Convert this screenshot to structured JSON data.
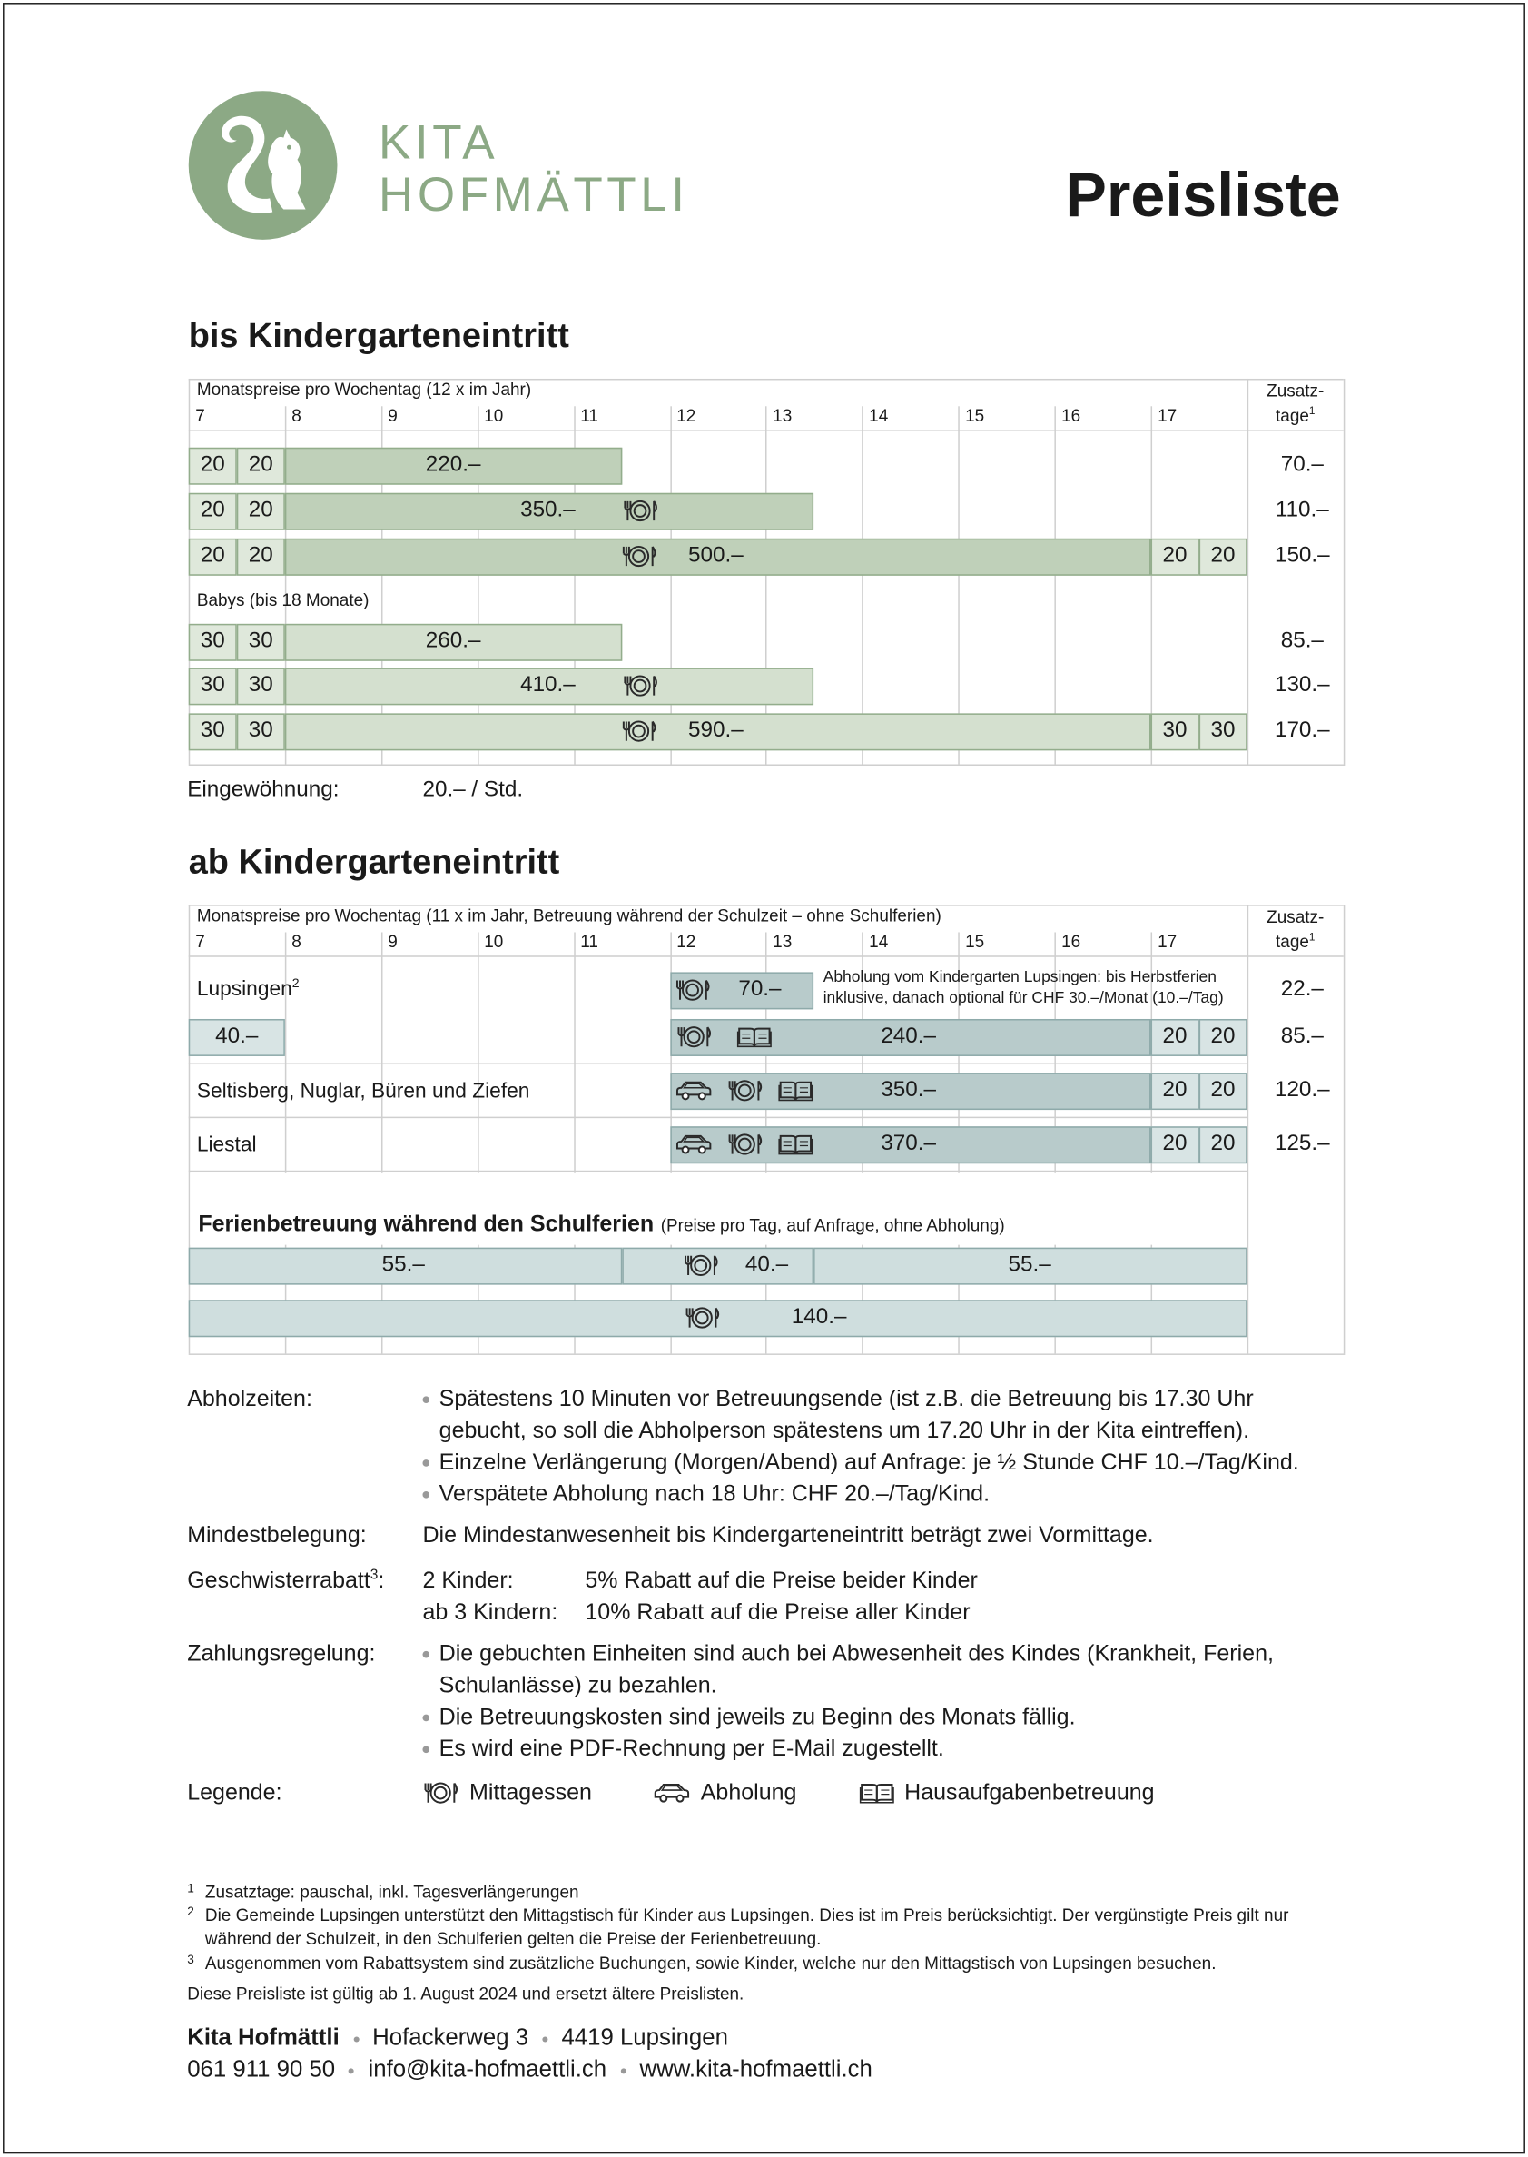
{
  "header": {
    "logo_line1": "KITA",
    "logo_line2": "HOFMÄTTLI",
    "title": "Preisliste"
  },
  "before_kindergarten": {
    "heading": "bis Kindergarteneintritt",
    "caption": "Monatspreise pro Wochentag (12 x im Jahr)",
    "hours": [
      "7",
      "8",
      "9",
      "10",
      "11",
      "12",
      "13",
      "14",
      "15",
      "16",
      "17"
    ],
    "extra_label": "Zusatz-",
    "extra_label_2": "tage",
    "extra_label_sup": "1",
    "rows": [
      {
        "cells": [
          "20",
          "20",
          "220.–"
        ],
        "extra": "70.–"
      },
      {
        "cells": [
          "20",
          "20",
          "350.–"
        ],
        "extra": "110.–"
      },
      {
        "cells": [
          "20",
          "20",
          "500.–",
          "20",
          "20"
        ],
        "extra": "150.–"
      }
    ],
    "babies_label": "Babys (bis 18 Monate)",
    "baby_rows": [
      {
        "cells": [
          "30",
          "30",
          "260.–"
        ],
        "extra": "85.–"
      },
      {
        "cells": [
          "30",
          "30",
          "410.–"
        ],
        "extra": "130.–"
      },
      {
        "cells": [
          "30",
          "30",
          "590.–",
          "30",
          "30"
        ],
        "extra": "170.–"
      }
    ],
    "settling_label": "Eingewöhnung:",
    "settling_value": "20.– / Std."
  },
  "after_kindergarten": {
    "heading": "ab Kindergarteneintritt",
    "caption": "Monatspreise pro Wochentag (11 x im Jahr, Betreuung während der Schulzeit – ohne Schulferien)",
    "hours": [
      "7",
      "8",
      "9",
      "10",
      "11",
      "12",
      "13",
      "14",
      "15",
      "16",
      "17"
    ],
    "extra_label": "Zusatz-",
    "extra_label_2": "tage",
    "extra_label_sup": "1",
    "lupsingen": {
      "name": "Lupsingen",
      "sup": "2",
      "lunch": "70.–",
      "lunch_extra": "22.–",
      "note_1": "Abholung vom Kindergarten Lupsingen: bis Herbstferien",
      "note_2": "inklusive, danach optional für CHF 30.–/Monat (10.–/Tag)",
      "cells": [
        "40.–",
        "240.–",
        "20",
        "20"
      ],
      "extra": "85.–"
    },
    "groups": [
      {
        "name": "Seltisberg, Nuglar, Büren und Ziefen",
        "cells": [
          "350.–",
          "20",
          "20"
        ],
        "extra": "120.–"
      },
      {
        "name": "Liestal",
        "cells": [
          "370.–",
          "20",
          "20"
        ],
        "extra": "125.–"
      }
    ],
    "holiday_heading": "Ferienbetreuung während den Schulferien",
    "holiday_note": "(Preise pro Tag, auf Anfrage, ohne Abholung)",
    "holiday_rows": [
      [
        "55.–",
        "40.–",
        "55.–"
      ],
      [
        "140.–"
      ]
    ]
  },
  "pickup": {
    "label": "Abholzeiten:",
    "bullets": [
      "Spätestens 10 Minuten vor Betreuungsende (ist z.B. die Betreuung bis 17.30 Uhr gebucht, so soll die Abholperson spätestens um 17.20 Uhr in der Kita eintreffen).",
      "Einzelne Verlängerung (Morgen/Abend) auf Anfrage: je ½ Stunde CHF 10.–/Tag/Kind.",
      "Verspätete Abholung nach 18 Uhr: CHF 20.–/Tag/Kind."
    ]
  },
  "minimum": {
    "label": "Mindestbelegung:",
    "text": "Die Mindestanwesenheit bis Kindergarteneintritt beträgt zwei Vormittage."
  },
  "siblings": {
    "label": "Geschwisterrabatt",
    "sup": "3",
    "label_end": ":",
    "rows": [
      {
        "count": "2 Kinder:",
        "discount": "5% Rabatt auf die Preise beider Kinder"
      },
      {
        "count": "ab 3 Kindern:",
        "discount": "10% Rabatt auf die Preise aller Kinder"
      }
    ]
  },
  "payment": {
    "label": "Zahlungsregelung:",
    "bullets": [
      "Die gebuchten Einheiten sind auch bei Abwesenheit des Kindes (Krankheit, Ferien, Schulanlässe) zu bezahlen.",
      "Die Betreuungskosten sind jeweils zu Beginn des Monats fällig.",
      "Es wird eine PDF-Rechnung per E-Mail zugestellt."
    ]
  },
  "legend": {
    "label": "Legende:",
    "lunch": "Mittagessen",
    "pickup": "Abholung",
    "homework": "Hausaufgabenbetreuung"
  },
  "footnotes": [
    {
      "mark": "1",
      "text": "Zusatztage: pauschal, inkl. Tagesverlängerungen"
    },
    {
      "mark": "2",
      "text": "Die Gemeinde Lupsingen unterstützt den Mittagstisch für Kinder aus Lupsingen. Dies ist im Preis berücksichtigt. Der vergünstigte Preis gilt nur während der Schulzeit, in den Schulferien gelten die Preise der Ferienbetreuung."
    },
    {
      "mark": "3",
      "text": "Ausgenommen vom Rabattsystem sind zusätzliche Buchungen, sowie Kinder, welche nur den Mittagstisch von Lupsingen besuchen."
    }
  ],
  "validity": "Diese Preisliste ist gültig ab 1. August 2024 und ersetzt ältere Preislisten.",
  "footer": {
    "name": "Kita Hofmättli",
    "street": "Hofackerweg 3",
    "city": "4419 Lupsingen",
    "phone": "061 911 90 50",
    "email": "info@kita-hofmaettli.ch",
    "web": "www.kita-hofmaettli.ch"
  }
}
